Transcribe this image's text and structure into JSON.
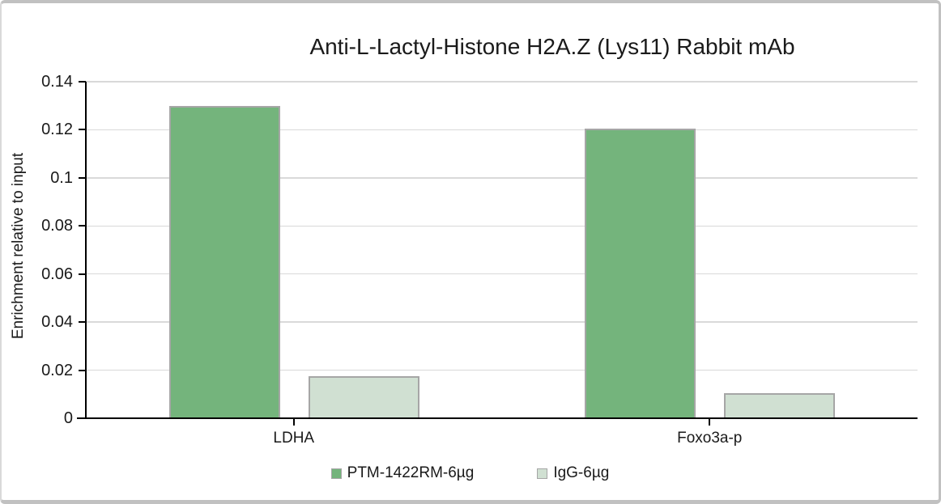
{
  "window": {
    "background": "#ffffff",
    "border_color": "#c1c1c1"
  },
  "chart_data": {
    "type": "bar",
    "title": "Anti-L-Lactyl-Histone H2A.Z (Lys11) Rabbit mAb",
    "xlabel": "",
    "ylabel": "Enrichment relative to input",
    "categories": [
      "LDHA",
      "Foxo3a-p"
    ],
    "series": [
      {
        "name": "PTM-1422RM-6µg",
        "values": [
          0.13,
          0.1205
        ],
        "color": "#74b47c",
        "border_color": "#a6a6a6"
      },
      {
        "name": "IgG-6µg",
        "values": [
          0.0175,
          0.0105
        ],
        "color": "#d0e0d2",
        "border_color": "#a6a6a6"
      }
    ],
    "ylim": [
      0,
      0.14
    ],
    "ytick_interval": 0.02,
    "yticks": [
      0,
      0.02,
      0.04,
      0.06,
      0.08,
      0.1,
      0.12,
      0.14
    ],
    "ytick_labels": [
      "0",
      "0.02",
      "0.04",
      "0.06",
      "0.08",
      "0.1",
      "0.12",
      "0.14"
    ],
    "grid": true,
    "gridline_color": "#d9d9d9",
    "axis_color": "#000000",
    "text_color": "#1a1a1a",
    "legend_position": "bottom-center"
  }
}
